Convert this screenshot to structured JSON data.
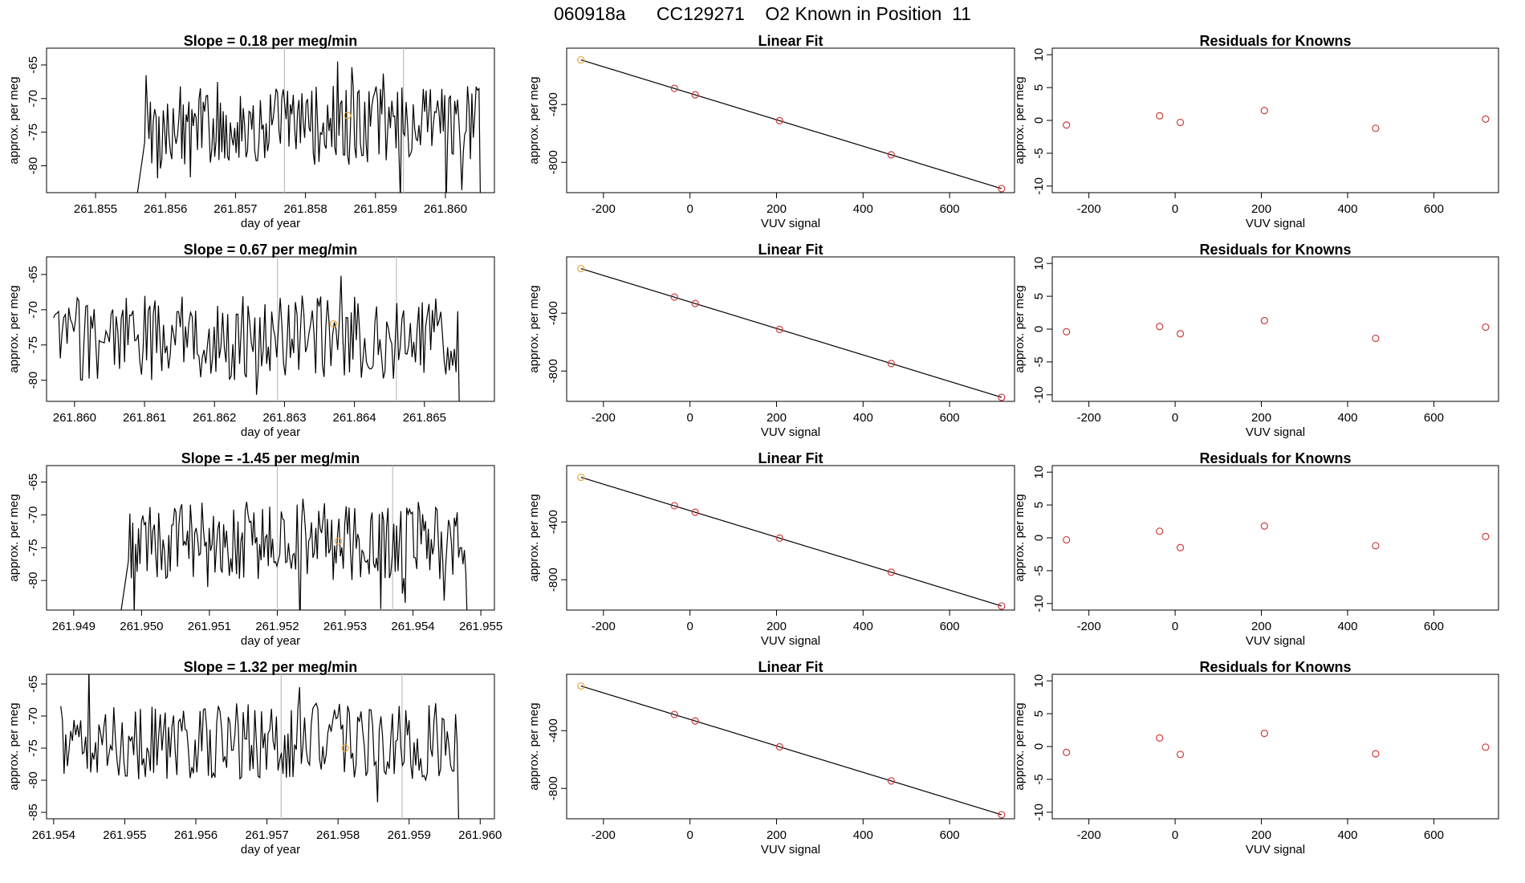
{
  "page": {
    "title": "060918a      CC129271    O2 Known in Position  11"
  },
  "colors": {
    "series": "#000000",
    "marker_fit": "#cd3b3b",
    "marker_highlight": "#e8a63c",
    "vline": "#bfbfbf",
    "axis": "#000000"
  },
  "chart_data": [
    {
      "type": "line",
      "row": 1,
      "column": "time_series",
      "title": "Slope =  0.18  per meg/min",
      "xlabel": "day of year",
      "ylabel": "approx. per meg",
      "xlim": [
        261.8543,
        261.8607
      ],
      "ylim": [
        -84.0,
        -62.5
      ],
      "xticks": [
        "261.855",
        "261.856",
        "261.857",
        "261.858",
        "261.859",
        "261.860"
      ],
      "yticks": [
        "-65",
        "-70",
        "-75",
        "-80"
      ],
      "vlines": [
        261.8577,
        261.8594
      ],
      "series_start": 261.8556,
      "series_end": 261.8605,
      "series_start_level": -84.0,
      "highlight_point": {
        "x": 261.8586,
        "y": -72.5
      }
    },
    {
      "type": "scatter",
      "row": 1,
      "column": "linear_fit",
      "title": "Linear Fit",
      "xlabel": "VUV signal",
      "ylabel": "approx. per meg",
      "xlim": [
        -285,
        750
      ],
      "ylim": [
        -1010,
        -10
      ],
      "xticks": [
        "-200",
        "0",
        "200",
        "400",
        "600"
      ],
      "yticks": [
        "-400",
        "-800"
      ],
      "points": [
        {
          "x": -252,
          "y": -91
        },
        {
          "x": -36,
          "y": -288
        },
        {
          "x": 12,
          "y": -333
        },
        {
          "x": 207,
          "y": -512
        },
        {
          "x": 465,
          "y": -748
        },
        {
          "x": 720,
          "y": -982
        }
      ],
      "fit_line": {
        "x": [
          -252,
          720
        ],
        "y": [
          -91,
          -982
        ]
      }
    },
    {
      "type": "scatter",
      "row": 1,
      "column": "residuals",
      "title": "Residuals for Knowns",
      "xlabel": "VUV signal",
      "ylabel": "approx. per meg",
      "xlim": [
        -285,
        750
      ],
      "ylim": [
        -11,
        11
      ],
      "xticks": [
        "-200",
        "0",
        "200",
        "400",
        "600"
      ],
      "yticks": [
        "10",
        "5",
        "0",
        "-5",
        "-10"
      ],
      "points": [
        {
          "x": -252,
          "y": -0.7
        },
        {
          "x": -36,
          "y": 0.7
        },
        {
          "x": 12,
          "y": -0.3
        },
        {
          "x": 207,
          "y": 1.5
        },
        {
          "x": 465,
          "y": -1.2
        },
        {
          "x": 720,
          "y": 0.2
        }
      ]
    },
    {
      "type": "line",
      "row": 2,
      "column": "time_series",
      "title": "Slope =  0.67  per meg/min",
      "xlabel": "day of year",
      "ylabel": "approx. per meg",
      "xlim": [
        261.8596,
        261.866
      ],
      "ylim": [
        -83.0,
        -62.5
      ],
      "xticks": [
        "261.860",
        "261.861",
        "261.862",
        "261.863",
        "261.864",
        "261.865"
      ],
      "yticks": [
        "-65",
        "-70",
        "-75",
        "-80"
      ],
      "vlines": [
        261.8629,
        261.8646
      ],
      "series_start": 261.8597,
      "series_end": 261.8655,
      "series_start_level": -75.0,
      "highlight_point": {
        "x": 261.8637,
        "y": -72.0
      }
    },
    {
      "type": "scatter",
      "row": 2,
      "column": "linear_fit",
      "title": "Linear Fit",
      "xlabel": "VUV signal",
      "ylabel": "approx. per meg",
      "xlim": [
        -285,
        750
      ],
      "ylim": [
        -1010,
        -10
      ],
      "xticks": [
        "-200",
        "0",
        "200",
        "400",
        "600"
      ],
      "yticks": [
        "-400",
        "-800"
      ],
      "points": [
        {
          "x": -252,
          "y": -91
        },
        {
          "x": -36,
          "y": -288
        },
        {
          "x": 12,
          "y": -333
        },
        {
          "x": 207,
          "y": -512
        },
        {
          "x": 465,
          "y": -748
        },
        {
          "x": 720,
          "y": -982
        }
      ],
      "fit_line": {
        "x": [
          -252,
          720
        ],
        "y": [
          -91,
          -982
        ]
      }
    },
    {
      "type": "scatter",
      "row": 2,
      "column": "residuals",
      "title": "Residuals for Knowns",
      "xlabel": "VUV signal",
      "ylabel": "approx. per meg",
      "xlim": [
        -285,
        750
      ],
      "ylim": [
        -11,
        11
      ],
      "xticks": [
        "-200",
        "0",
        "200",
        "400",
        "600"
      ],
      "yticks": [
        "10",
        "5",
        "0",
        "-5",
        "-10"
      ],
      "points": [
        {
          "x": -252,
          "y": -0.4
        },
        {
          "x": -36,
          "y": 0.4
        },
        {
          "x": 12,
          "y": -0.7
        },
        {
          "x": 207,
          "y": 1.3
        },
        {
          "x": 465,
          "y": -1.4
        },
        {
          "x": 720,
          "y": 0.3
        }
      ]
    },
    {
      "type": "line",
      "row": 3,
      "column": "time_series",
      "title": "Slope =  -1.45  per meg/min",
      "xlabel": "day of year",
      "ylabel": "approx. per meg",
      "xlim": [
        261.9486,
        261.9552
      ],
      "ylim": [
        -84.5,
        -62.5
      ],
      "xticks": [
        "261.949",
        "261.950",
        "261.951",
        "261.952",
        "261.953",
        "261.954",
        "261.955"
      ],
      "yticks": [
        "-65",
        "-70",
        "-75",
        "-80"
      ],
      "vlines": [
        261.952,
        261.9537
      ],
      "series_start": 261.9497,
      "series_end": 261.9548,
      "series_start_level": -84.5,
      "highlight_point": {
        "x": 261.9529,
        "y": -74.0
      }
    },
    {
      "type": "scatter",
      "row": 3,
      "column": "linear_fit",
      "title": "Linear Fit",
      "xlabel": "VUV signal",
      "ylabel": "approx. per meg",
      "xlim": [
        -285,
        750
      ],
      "ylim": [
        -1010,
        -10
      ],
      "xticks": [
        "-200",
        "0",
        "200",
        "400",
        "600"
      ],
      "yticks": [
        "-400",
        "-800"
      ],
      "points": [
        {
          "x": -252,
          "y": -91
        },
        {
          "x": -36,
          "y": -288
        },
        {
          "x": 12,
          "y": -333
        },
        {
          "x": 207,
          "y": -512
        },
        {
          "x": 465,
          "y": -748
        },
        {
          "x": 720,
          "y": -982
        }
      ],
      "fit_line": {
        "x": [
          -252,
          720
        ],
        "y": [
          -91,
          -982
        ]
      }
    },
    {
      "type": "scatter",
      "row": 3,
      "column": "residuals",
      "title": "Residuals for Knowns",
      "xlabel": "VUV signal",
      "ylabel": "approx. per meg",
      "xlim": [
        -285,
        750
      ],
      "ylim": [
        -11,
        11
      ],
      "xticks": [
        "-200",
        "0",
        "200",
        "400",
        "600"
      ],
      "yticks": [
        "10",
        "5",
        "0",
        "-5",
        "-10"
      ],
      "points": [
        {
          "x": -252,
          "y": -0.3
        },
        {
          "x": -36,
          "y": 1.0
        },
        {
          "x": 12,
          "y": -1.5
        },
        {
          "x": 207,
          "y": 1.8
        },
        {
          "x": 465,
          "y": -1.2
        },
        {
          "x": 720,
          "y": 0.2
        }
      ]
    },
    {
      "type": "line",
      "row": 4,
      "column": "time_series",
      "title": "Slope =  1.32  per meg/min",
      "xlabel": "day of year",
      "ylabel": "approx. per meg",
      "xlim": [
        261.9539,
        261.9602
      ],
      "ylim": [
        -86.0,
        -63.5
      ],
      "xticks": [
        "261.954",
        "261.955",
        "261.956",
        "261.957",
        "261.958",
        "261.959",
        "261.960"
      ],
      "yticks": [
        "-65",
        "-70",
        "-75",
        "-80",
        "-85"
      ],
      "vlines": [
        261.9572,
        261.9589
      ],
      "series_start": 261.9541,
      "series_end": 261.9597,
      "series_start_level": -76.0,
      "highlight_point": {
        "x": 261.9581,
        "y": -75.0
      }
    },
    {
      "type": "scatter",
      "row": 4,
      "column": "linear_fit",
      "title": "Linear Fit",
      "xlabel": "VUV signal",
      "ylabel": "approx. per meg",
      "xlim": [
        -285,
        750
      ],
      "ylim": [
        -1010,
        -10
      ],
      "xticks": [
        "-200",
        "0",
        "200",
        "400",
        "600"
      ],
      "yticks": [
        "-400",
        "-800"
      ],
      "points": [
        {
          "x": -252,
          "y": -91
        },
        {
          "x": -36,
          "y": -288
        },
        {
          "x": 12,
          "y": -333
        },
        {
          "x": 207,
          "y": -512
        },
        {
          "x": 465,
          "y": -748
        },
        {
          "x": 720,
          "y": -982
        }
      ],
      "fit_line": {
        "x": [
          -252,
          720
        ],
        "y": [
          -91,
          -982
        ]
      }
    },
    {
      "type": "scatter",
      "row": 4,
      "column": "residuals",
      "title": "Residuals for Knowns",
      "xlabel": "VUV signal",
      "ylabel": "approx. per meg",
      "xlim": [
        -285,
        750
      ],
      "ylim": [
        -11,
        11
      ],
      "xticks": [
        "-200",
        "0",
        "200",
        "400",
        "600"
      ],
      "yticks": [
        "10",
        "5",
        "0",
        "-5",
        "-10"
      ],
      "points": [
        {
          "x": -252,
          "y": -0.9
        },
        {
          "x": -36,
          "y": 1.3
        },
        {
          "x": 12,
          "y": -1.2
        },
        {
          "x": 207,
          "y": 2.0
        },
        {
          "x": 465,
          "y": -1.1
        },
        {
          "x": 720,
          "y": -0.1
        }
      ]
    }
  ]
}
